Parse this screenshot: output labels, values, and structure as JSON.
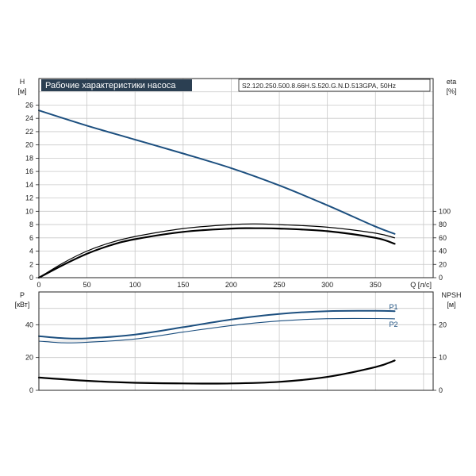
{
  "title": "Рабочие характеристики насоса",
  "model": "S2.120.250.500.8.66H.S.520.G.N.D.513GPA, 50Hz",
  "colors": {
    "head": "#1c4f7f",
    "power": "#1c4f7f",
    "eta": "#000000",
    "npsh": "#000000",
    "grid": "#c8c8c8",
    "title_bg": "#2b3f52"
  },
  "chart_data": [
    {
      "type": "line",
      "id": "top",
      "xlabel": "Q [л/с]",
      "x_ticks": [
        0,
        50,
        100,
        150,
        200,
        250,
        300,
        350
      ],
      "xlim": [
        0,
        410
      ],
      "left_axis": {
        "label": [
          "H",
          "[м]"
        ],
        "ticks": [
          0,
          2,
          4,
          6,
          8,
          10,
          12,
          14,
          16,
          18,
          20,
          22,
          24,
          26
        ],
        "lim": [
          0,
          30
        ]
      },
      "right_axis": {
        "label": [
          "eta",
          "[%]"
        ],
        "ticks": [
          0,
          20,
          40,
          60,
          80,
          100
        ],
        "lim": [
          0,
          300
        ]
      },
      "grid": true,
      "series": [
        {
          "id": "H",
          "axis": "left",
          "x": [
            0,
            50,
            100,
            150,
            200,
            250,
            300,
            350,
            370
          ],
          "y": [
            25.2,
            22.9,
            20.8,
            18.7,
            16.5,
            13.9,
            10.9,
            7.7,
            6.6
          ]
        },
        {
          "id": "eta1",
          "axis": "right",
          "x": [
            0,
            25,
            50,
            75,
            100,
            150,
            200,
            225,
            250,
            300,
            350,
            370
          ],
          "y": [
            0,
            22,
            40,
            53,
            62,
            74,
            80,
            81,
            80,
            76,
            67,
            60
          ]
        },
        {
          "id": "eta2",
          "axis": "right",
          "x": [
            0,
            25,
            50,
            75,
            100,
            150,
            200,
            225,
            250,
            300,
            350,
            370
          ],
          "y": [
            0,
            19,
            36,
            49,
            58,
            69,
            74,
            74.5,
            74,
            70,
            60,
            51
          ]
        }
      ]
    },
    {
      "type": "line",
      "id": "bottom",
      "xlim": [
        0,
        410
      ],
      "left_axis": {
        "label": [
          "P",
          "[кВт]"
        ],
        "ticks": [
          0,
          20,
          40
        ],
        "lim": [
          0,
          60
        ]
      },
      "right_axis": {
        "label": [
          "NPSH",
          "[м]"
        ],
        "ticks": [
          0,
          10,
          20
        ],
        "lim": [
          0,
          30
        ]
      },
      "grid": true,
      "series": [
        {
          "id": "P1",
          "name": "P1",
          "axis": "left",
          "x": [
            0,
            25,
            50,
            100,
            150,
            200,
            250,
            300,
            350,
            370
          ],
          "y": [
            33,
            31.8,
            31.7,
            34,
            38.5,
            43.2,
            46.6,
            48.3,
            48.5,
            48.3
          ]
        },
        {
          "id": "P2",
          "name": "P2",
          "axis": "left",
          "x": [
            0,
            25,
            50,
            100,
            150,
            200,
            250,
            300,
            350,
            370
          ],
          "y": [
            30,
            29,
            29.3,
            31.3,
            35.5,
            39.5,
            42.3,
            43.7,
            43.8,
            43.6
          ]
        },
        {
          "id": "NPSH",
          "axis": "right",
          "x": [
            0,
            50,
            100,
            150,
            200,
            250,
            300,
            350,
            370
          ],
          "y": [
            3.9,
            2.9,
            2.3,
            2.1,
            2.1,
            2.6,
            4.1,
            7.1,
            9.1
          ]
        }
      ]
    }
  ]
}
